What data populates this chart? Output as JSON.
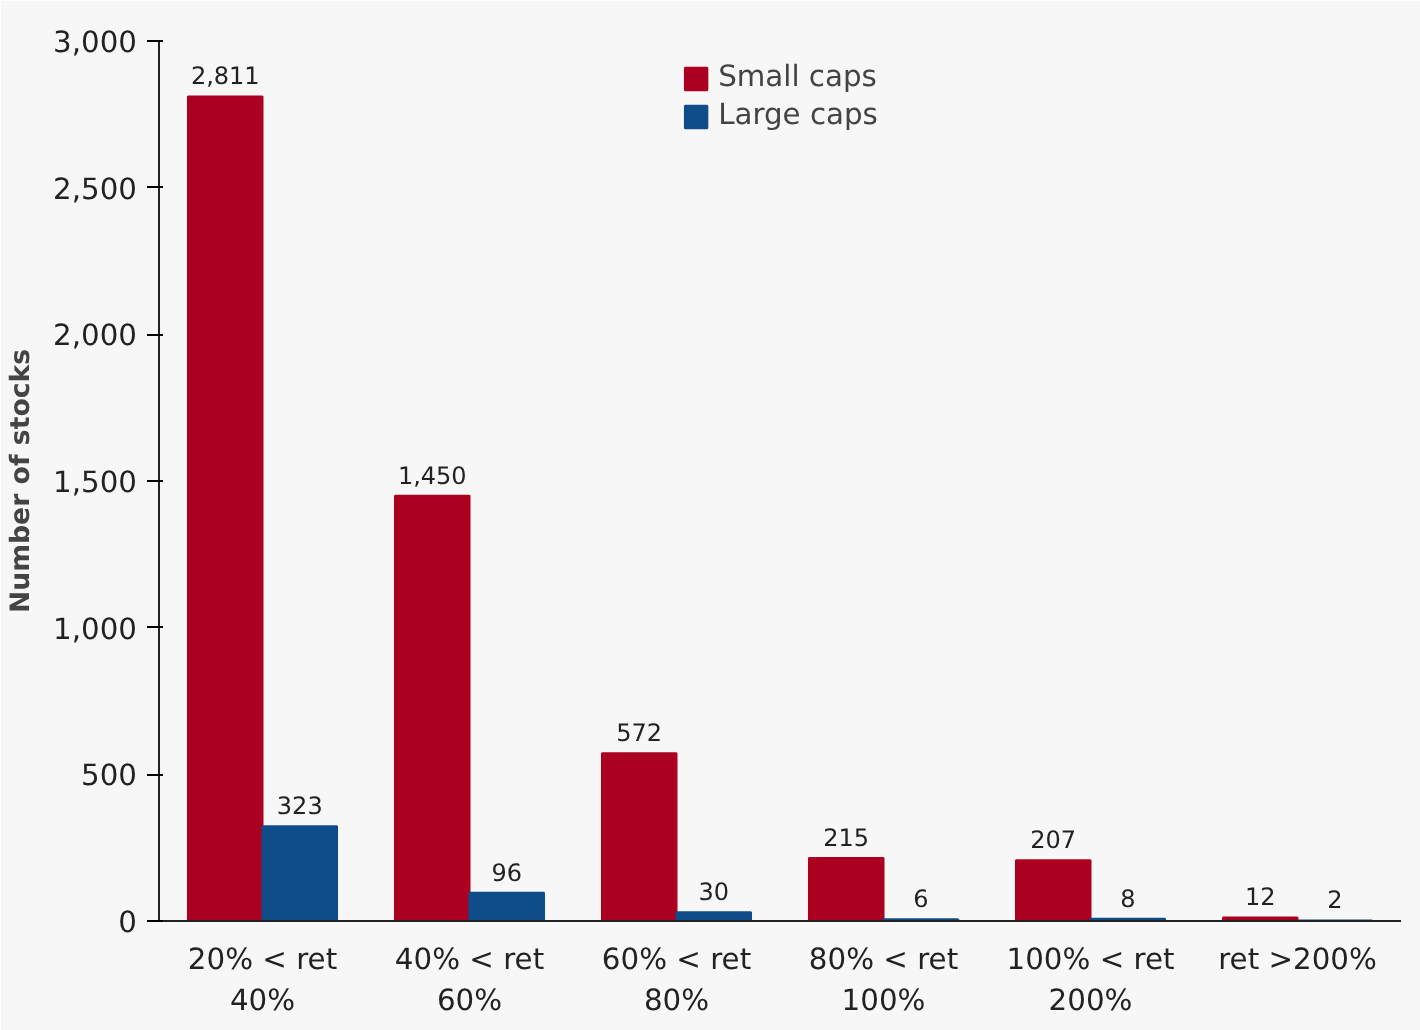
{
  "chart_data": {
    "type": "bar",
    "ylabel": "Number of stocks",
    "categories": [
      "20% < ret\n40%",
      "40% < ret\n60%",
      "60% < ret\n80%",
      "80% < ret\n100%",
      "100% < ret\n200%",
      "ret >200%"
    ],
    "series": [
      {
        "name": "Small caps",
        "color": "#ac0021",
        "values": [
          2811,
          1450,
          572,
          215,
          207,
          12
        ],
        "value_labels": [
          "2,811",
          "1,450",
          "572",
          "215",
          "207",
          "12"
        ]
      },
      {
        "name": "Large caps",
        "color": "#0f4c8a",
        "values": [
          323,
          96,
          30,
          6,
          8,
          2
        ],
        "value_labels": [
          "323",
          "96",
          "30",
          "6",
          "8",
          "2"
        ]
      }
    ],
    "ylim": [
      0,
      3000
    ],
    "yticks": [
      0,
      {
        "value": 500,
        "label": "500"
      },
      {
        "value": 1000,
        "label": "1,000"
      },
      {
        "value": 1500,
        "label": "1,500"
      },
      {
        "value": 2000,
        "label": "2,000"
      },
      {
        "value": 2500,
        "label": "2,500"
      },
      {
        "value": 3000,
        "label": "3,000"
      }
    ],
    "grid": false,
    "legend": "top"
  }
}
